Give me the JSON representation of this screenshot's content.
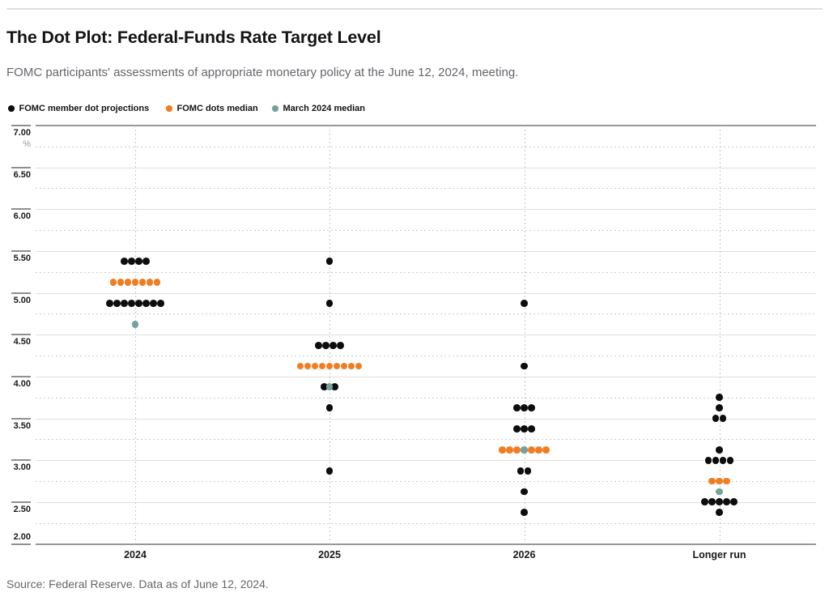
{
  "header": {
    "title": "The Dot Plot: Federal-Funds Rate Target Level",
    "subtitle": "FOMC participants' assessments of appropriate monetary policy at the June 12, 2024, meeting."
  },
  "legend": {
    "items": [
      {
        "label": "FOMC member dot projections",
        "type": "member"
      },
      {
        "label": "FOMC dots median",
        "type": "median"
      },
      {
        "label": "March 2024 median",
        "type": "march_median"
      }
    ]
  },
  "source": "Source: Federal Reserve. Data as of June 12, 2024.",
  "chart_data": {
    "type": "scatter",
    "subtype": "dot-plot",
    "title": "The Dot Plot: Federal-Funds Rate Target Level",
    "unit": "%",
    "y_axis": {
      "min": 2.0,
      "max": 7.0,
      "major_step": 0.5,
      "minor_step": 0.25,
      "tick_labels": [
        "7.00",
        "6.50",
        "6.00",
        "5.50",
        "5.00",
        "4.50",
        "4.00",
        "3.50",
        "3.00",
        "2.50",
        "2.00"
      ]
    },
    "categories": [
      "2024",
      "2025",
      "2026",
      "Longer run"
    ],
    "colors": {
      "member": "#0d0d0d",
      "median": "#f17d23",
      "march_median": "#74a39c"
    },
    "medians": {
      "2024": 5.125,
      "2025": 4.125,
      "2026": 3.125,
      "Longer run": 2.75
    },
    "march_2024_medians": {
      "2024": 4.625,
      "2025": 3.875,
      "2026": 3.125,
      "Longer run": 2.625
    },
    "grid": {
      "horizontal_major": "solid",
      "horizontal_minor": "dotted",
      "vertical_category": "dotted",
      "legend_position": "top-left"
    },
    "series": [
      {
        "category": "2024",
        "dots": [
          {
            "value": 5.375,
            "count": 4,
            "type": "member"
          },
          {
            "value": 5.125,
            "count": 7,
            "type": "median"
          },
          {
            "value": 4.875,
            "count": 8,
            "type": "member"
          },
          {
            "value": 4.625,
            "count": 1,
            "type": "march_median"
          }
        ]
      },
      {
        "category": "2025",
        "dots": [
          {
            "value": 5.375,
            "count": 1,
            "type": "member"
          },
          {
            "value": 4.875,
            "count": 1,
            "type": "member"
          },
          {
            "value": 4.375,
            "count": 4,
            "type": "member"
          },
          {
            "value": 4.125,
            "count": 9,
            "type": "median"
          },
          {
            "value": 3.875,
            "count": 2,
            "type": "member",
            "spacing": 13
          },
          {
            "value": 3.875,
            "count": 1,
            "type": "march_median"
          },
          {
            "value": 3.625,
            "count": 1,
            "type": "member"
          },
          {
            "value": 2.875,
            "count": 1,
            "type": "member"
          }
        ]
      },
      {
        "category": "2026",
        "dots": [
          {
            "value": 4.875,
            "count": 1,
            "type": "member"
          },
          {
            "value": 4.125,
            "count": 1,
            "type": "member"
          },
          {
            "value": 3.625,
            "count": 3,
            "type": "member"
          },
          {
            "value": 3.375,
            "count": 3,
            "type": "member"
          },
          {
            "value": 3.125,
            "count": 7,
            "type": "median"
          },
          {
            "value": 3.125,
            "count": 1,
            "type": "march_median"
          },
          {
            "value": 2.875,
            "count": 2,
            "type": "member"
          },
          {
            "value": 2.625,
            "count": 1,
            "type": "member"
          },
          {
            "value": 2.375,
            "count": 1,
            "type": "member"
          }
        ]
      },
      {
        "category": "Longer run",
        "dots": [
          {
            "value": 3.75,
            "count": 1,
            "type": "member"
          },
          {
            "value": 3.625,
            "count": 1,
            "type": "member"
          },
          {
            "value": 3.5,
            "count": 2,
            "type": "member"
          },
          {
            "value": 3.125,
            "count": 1,
            "type": "member"
          },
          {
            "value": 3.0,
            "count": 4,
            "type": "member"
          },
          {
            "value": 2.75,
            "count": 3,
            "type": "median"
          },
          {
            "value": 2.625,
            "count": 1,
            "type": "march_median"
          },
          {
            "value": 2.5,
            "count": 5,
            "type": "member"
          },
          {
            "value": 2.375,
            "count": 1,
            "type": "member"
          }
        ]
      }
    ]
  }
}
